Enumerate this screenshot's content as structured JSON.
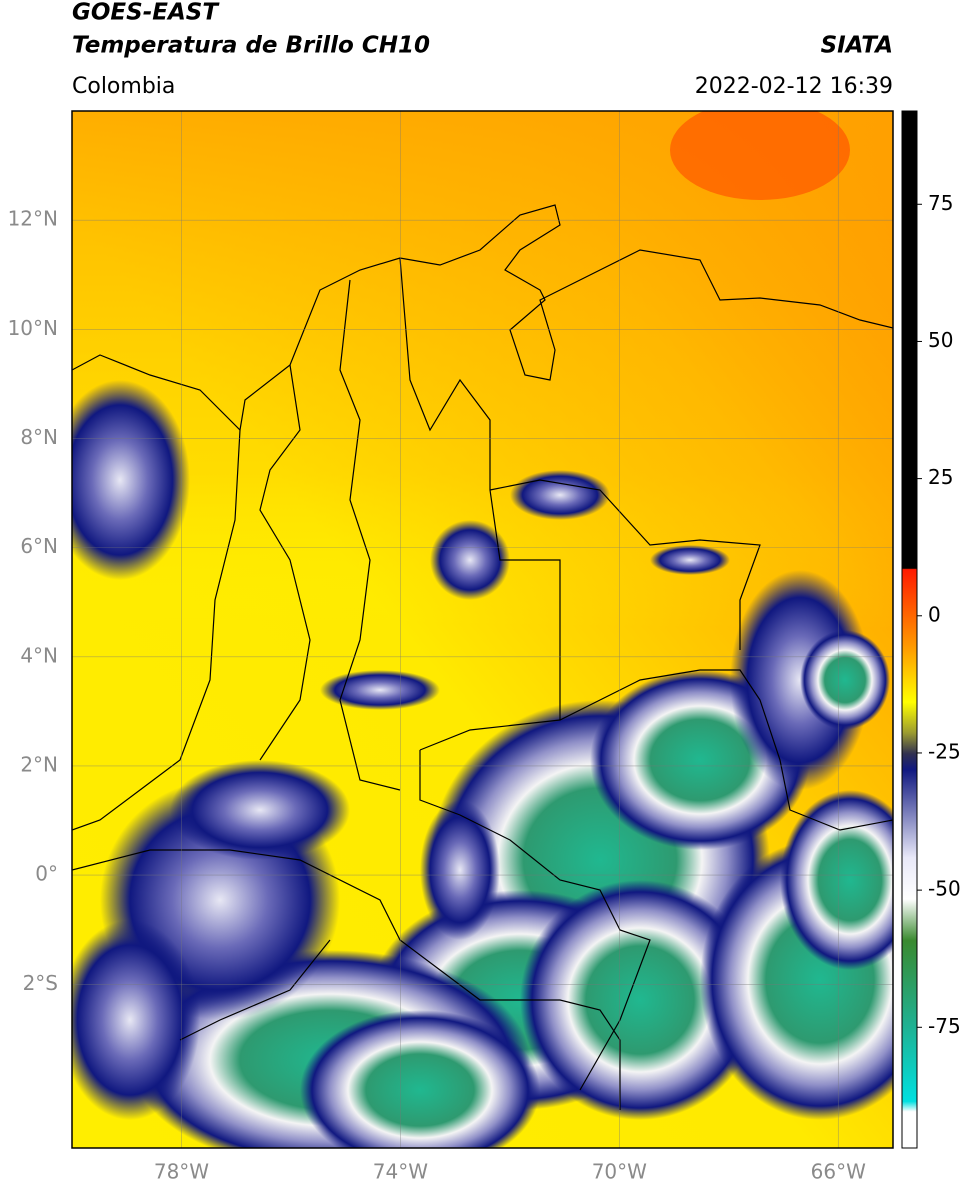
{
  "header": {
    "title_line1": "GOES-EAST",
    "title_line2": "Temperatura de Brillo CH10",
    "region": "Colombia",
    "source": "SIATA",
    "datetime": "2022-02-12 16:39"
  },
  "map": {
    "lon_range": [
      -80,
      -65
    ],
    "lat_range": [
      -5,
      14
    ],
    "lon_ticks": [
      {
        "value": -78,
        "label": "78°W"
      },
      {
        "value": -74,
        "label": "74°W"
      },
      {
        "value": -70,
        "label": "70°W"
      },
      {
        "value": -66,
        "label": "66°W"
      }
    ],
    "lat_ticks": [
      {
        "value": 12,
        "label": "12°N"
      },
      {
        "value": 10,
        "label": "10°N"
      },
      {
        "value": 8,
        "label": "8°N"
      },
      {
        "value": 6,
        "label": "6°N"
      },
      {
        "value": 4,
        "label": "4°N"
      },
      {
        "value": 2,
        "label": "2°N"
      },
      {
        "value": 0,
        "label": "0°"
      },
      {
        "value": -2,
        "label": "2°S"
      }
    ]
  },
  "colorbar": {
    "range": [
      -97,
      92
    ],
    "ticks": [
      75,
      50,
      25,
      0,
      -25,
      -50,
      -75
    ]
  }
}
